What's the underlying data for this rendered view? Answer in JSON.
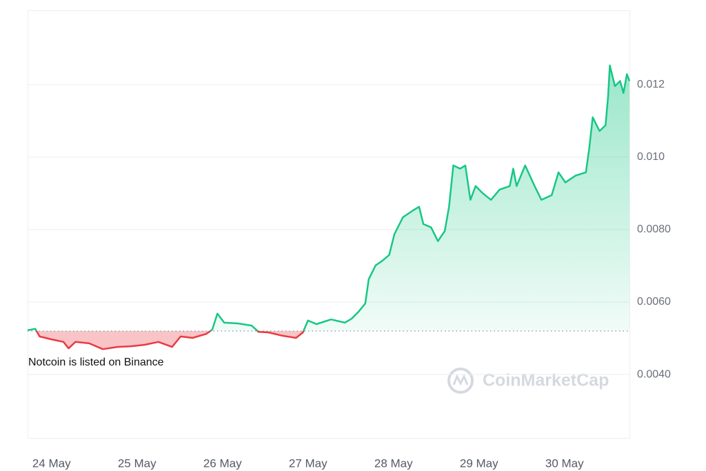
{
  "chart_data": {
    "type": "line",
    "annotation": "Notcoin is listed on Binance",
    "watermark": "CoinMarketCap",
    "baseline": 0.0052,
    "colors": {
      "above": "#16c784",
      "below": "#ea3943"
    },
    "grid": true,
    "xlim": [
      23.72,
      30.76
    ],
    "xticks": [
      {
        "value": 24,
        "label": "24 May"
      },
      {
        "value": 25,
        "label": "25 May"
      },
      {
        "value": 26,
        "label": "26 May"
      },
      {
        "value": 27,
        "label": "27 May"
      },
      {
        "value": 28,
        "label": "28 May"
      },
      {
        "value": 29,
        "label": "29 May"
      },
      {
        "value": 30,
        "label": "30 May"
      }
    ],
    "ylim": [
      0.00225,
      0.01405
    ],
    "yticks": [
      {
        "value": 0.004,
        "label": "0.0040"
      },
      {
        "value": 0.006,
        "label": "0.0060"
      },
      {
        "value": 0.008,
        "label": "0.0080"
      },
      {
        "value": 0.01,
        "label": "0.010"
      },
      0.012
    ],
    "x": [
      23.72,
      23.81,
      23.86,
      24.0,
      24.14,
      24.2,
      24.28,
      24.44,
      24.6,
      24.77,
      24.93,
      25.09,
      25.25,
      25.41,
      25.51,
      25.65,
      25.81,
      25.88,
      25.94,
      26.02,
      26.18,
      26.34,
      26.42,
      26.54,
      26.7,
      26.86,
      26.94,
      27.0,
      27.1,
      27.27,
      27.43,
      27.51,
      27.59,
      27.67,
      27.71,
      27.79,
      27.87,
      27.95,
      28.01,
      28.11,
      28.23,
      28.3,
      28.35,
      28.44,
      28.52,
      28.6,
      28.65,
      28.7,
      28.78,
      28.84,
      28.9,
      28.96,
      29.04,
      29.14,
      29.24,
      29.36,
      29.4,
      29.44,
      29.54,
      29.65,
      29.73,
      29.85,
      29.93,
      30.01,
      30.13,
      30.25,
      30.29,
      30.33,
      30.41,
      30.48,
      30.51,
      30.53,
      30.59,
      30.65,
      30.69,
      30.73,
      30.76
    ],
    "values": [
      0.00522,
      0.00526,
      0.00505,
      0.00497,
      0.0049,
      0.00472,
      0.0049,
      0.00486,
      0.0047,
      0.00476,
      0.00478,
      0.00482,
      0.0049,
      0.00476,
      0.00505,
      0.00501,
      0.00512,
      0.00524,
      0.00568,
      0.00543,
      0.00541,
      0.00535,
      0.00518,
      0.00516,
      0.00507,
      0.00501,
      0.00516,
      0.00549,
      0.00539,
      0.00552,
      0.00543,
      0.00554,
      0.00573,
      0.00596,
      0.00663,
      0.00701,
      0.00714,
      0.0073,
      0.00787,
      0.00834,
      0.00853,
      0.00863,
      0.00815,
      0.00806,
      0.00768,
      0.00796,
      0.00863,
      0.00977,
      0.00968,
      0.00977,
      0.00882,
      0.0092,
      0.00901,
      0.00882,
      0.0091,
      0.0092,
      0.00968,
      0.0092,
      0.00977,
      0.0092,
      0.00882,
      0.00895,
      0.00958,
      0.0093,
      0.00949,
      0.00958,
      0.01025,
      0.0111,
      0.01072,
      0.01088,
      0.01168,
      0.01253,
      0.01196,
      0.0121,
      0.01177,
      0.01229,
      0.0121
    ]
  }
}
